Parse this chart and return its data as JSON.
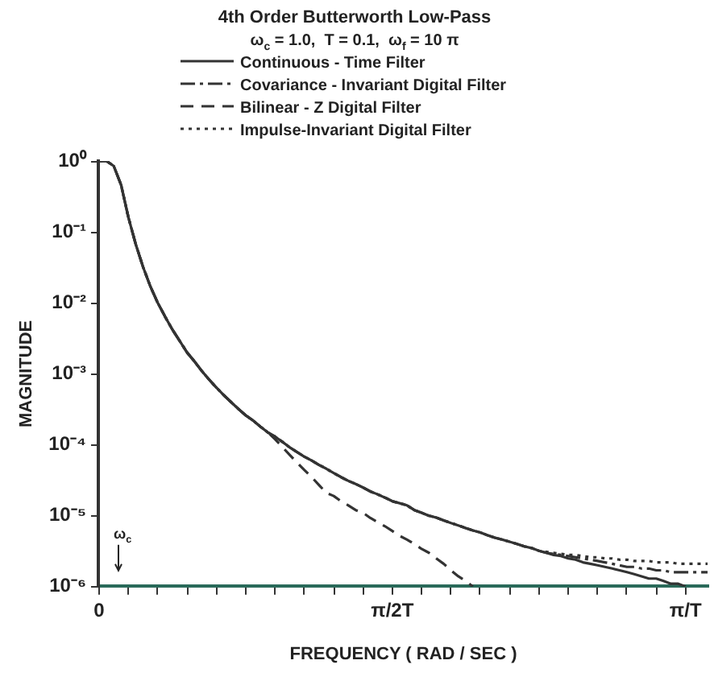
{
  "chart_data": {
    "type": "line",
    "title": "4th Order Butterworth Low-Pass",
    "subtitle": "ω$_{c}$ = 1.0,  T = 0.1,  ω$_{f}$ = 10 π",
    "xlabel": "FREQUENCY ( RAD / SEC )",
    "ylabel": "MAGNITUDE",
    "log": "y",
    "grid": false,
    "legend": "top",
    "marker": "none",
    "categories": [
      "0",
      null,
      null,
      null,
      null,
      null,
      null,
      null,
      null,
      null,
      null,
      null,
      null,
      null,
      null,
      null,
      null,
      null,
      null,
      null,
      null,
      null,
      null,
      null,
      null,
      null,
      null,
      null,
      null,
      null,
      null,
      null,
      null,
      null,
      null,
      null,
      null,
      null,
      null,
      null,
      "π/2T",
      null,
      null,
      null,
      null,
      null,
      null,
      null,
      null,
      null,
      null,
      null,
      null,
      null,
      null,
      null,
      null,
      null,
      null,
      null,
      null,
      null,
      null,
      null,
      null,
      null,
      null,
      null,
      null,
      null,
      null,
      null,
      null,
      null,
      null,
      null,
      null,
      null,
      null,
      null,
      "π/T",
      null,
      null,
      null
    ],
    "ylim": [
      1e-06,
      1
    ],
    "yticks": [
      {
        "value": 1,
        "label": "10⁰"
      },
      {
        "value": 0.1,
        "label": "10⁻¹"
      },
      {
        "value": 0.01,
        "label": "10⁻²"
      },
      {
        "value": 0.001,
        "label": "10⁻³"
      },
      {
        "value": 0.0001,
        "label": "10⁻⁴"
      },
      {
        "value": 1e-05,
        "label": "10⁻⁵"
      },
      {
        "value": 1e-06,
        "label": "10⁻⁶"
      }
    ],
    "annotations": [
      "ω$_{c}$"
    ],
    "series": [
      {
        "name": "Continuous - Time Filter",
        "color": "#333333",
        "line_style": "solid",
        "values": [
          1,
          1,
          0.85,
          0.46,
          0.16,
          0.067,
          0.032,
          0.017,
          0.01,
          0.0064,
          0.0042,
          0.0029,
          0.002,
          0.0015,
          0.0011,
          0.00083,
          0.00064,
          0.0005,
          0.0004,
          0.00032,
          0.00026,
          0.00022,
          0.00018,
          0.00015,
          0.00013,
          0.00011,
          9.2e-05,
          7.9e-05,
          6.8e-05,
          6e-05,
          5.2e-05,
          4.6e-05,
          4e-05,
          3.5e-05,
          3.1e-05,
          2.8e-05,
          2.5e-05,
          2.2e-05,
          2e-05,
          1.8e-05,
          1.6e-05,
          1.5e-05,
          1.4e-05,
          1.2e-05,
          1.1e-05,
          1e-05,
          9.4e-06,
          8.6e-06,
          7.9e-06,
          7.3e-06,
          6.7e-06,
          6.2e-06,
          5.8e-06,
          5.3e-06,
          4.9e-06,
          4.6e-06,
          4.3e-06,
          4e-06,
          3.7e-06,
          3.5e-06,
          3.2e-06,
          3e-06,
          2.8e-06,
          2.7e-06,
          2.5e-06,
          2.4e-06,
          2.2e-06,
          2.1e-06,
          2e-06,
          1.9e-06,
          1.8e-06,
          1.7e-06,
          1.6e-06,
          1.5e-06,
          1.4e-06,
          1.3e-06,
          1.3e-06,
          1.2e-06,
          1.1e-06,
          1.1e-06,
          1e-06,
          null,
          null,
          null
        ]
      },
      {
        "name": "Covariance - Invariant Digital Filter",
        "color": "#333333",
        "line_style": "dashdot",
        "values": [
          1,
          1,
          0.85,
          0.46,
          0.16,
          0.067,
          0.032,
          0.017,
          0.01,
          0.0064,
          0.0042,
          0.0029,
          0.002,
          0.0015,
          0.0011,
          0.00083,
          0.00064,
          0.0005,
          0.0004,
          0.00032,
          0.00026,
          0.00022,
          0.00018,
          0.00015,
          0.00013,
          0.00011,
          9.2e-05,
          7.9e-05,
          6.8e-05,
          6e-05,
          5.2e-05,
          4.6e-05,
          4e-05,
          3.5e-05,
          3.1e-05,
          2.8e-05,
          2.5e-05,
          2.2e-05,
          2e-05,
          1.8e-05,
          1.6e-05,
          1.5e-05,
          1.4e-05,
          1.2e-05,
          1.1e-05,
          1e-05,
          9.4e-06,
          8.6e-06,
          7.9e-06,
          7.3e-06,
          6.7e-06,
          6.2e-06,
          5.8e-06,
          5.3e-06,
          4.9e-06,
          4.6e-06,
          4.3e-06,
          4e-06,
          3.7e-06,
          3.5e-06,
          3.2e-06,
          3e-06,
          2.9e-06,
          2.8e-06,
          2.7e-06,
          2.6e-06,
          2.5e-06,
          2.4e-06,
          2.3e-06,
          2.2e-06,
          2.1e-06,
          2e-06,
          1.9e-06,
          1.9e-06,
          1.8e-06,
          1.8e-06,
          1.7e-06,
          1.7e-06,
          1.6e-06,
          1.6e-06,
          1.6e-06,
          1.6e-06,
          1.6e-06,
          1.6e-06
        ]
      },
      {
        "name": "Bilinear - Z Digital Filter",
        "color": "#333333",
        "line_style": "dashed",
        "values": [
          1,
          1,
          0.85,
          0.46,
          0.16,
          0.067,
          0.032,
          0.017,
          0.01,
          0.0064,
          0.0042,
          0.0029,
          0.002,
          0.0015,
          0.0011,
          0.00083,
          0.00064,
          0.0005,
          0.0004,
          0.00032,
          0.00026,
          0.00022,
          0.00018,
          0.00015,
          0.00012,
          9.3e-05,
          7.2e-05,
          5.6e-05,
          4.4e-05,
          3.5e-05,
          2.7e-05,
          2.1e-05,
          1.9e-05,
          1.6e-05,
          1.4e-05,
          1.2e-05,
          1.1e-05,
          9.3e-06,
          8.1e-06,
          7.1e-06,
          6.1e-06,
          5.2e-06,
          4.6e-06,
          4e-06,
          3.4e-06,
          3e-06,
          2.5e-06,
          2.1e-06,
          1.7e-06,
          1.4e-06,
          1.2e-06,
          1e-06,
          null,
          null,
          null,
          null,
          null,
          null,
          null,
          null,
          null,
          null,
          null,
          null,
          null,
          null,
          null,
          null,
          null,
          null,
          null,
          null,
          null,
          null,
          null,
          null,
          null,
          null,
          null,
          null,
          null,
          null,
          null,
          null
        ]
      },
      {
        "name": "Impulse-Invariant Digital Filter",
        "color": "#333333",
        "line_style": "dotted",
        "values": [
          1,
          1,
          0.85,
          0.46,
          0.16,
          0.067,
          0.032,
          0.017,
          0.01,
          0.0064,
          0.0042,
          0.0029,
          0.002,
          0.0015,
          0.0011,
          0.00083,
          0.00064,
          0.0005,
          0.0004,
          0.00032,
          0.00026,
          0.00022,
          0.00018,
          0.00015,
          0.00013,
          0.00011,
          9.2e-05,
          7.9e-05,
          6.8e-05,
          6e-05,
          5.2e-05,
          4.6e-05,
          4e-05,
          3.5e-05,
          3.1e-05,
          2.8e-05,
          2.5e-05,
          2.2e-05,
          2e-05,
          1.8e-05,
          1.6e-05,
          1.5e-05,
          1.4e-05,
          1.2e-05,
          1.1e-05,
          1e-05,
          9.4e-06,
          8.6e-06,
          7.9e-06,
          7.3e-06,
          6.7e-06,
          6.2e-06,
          5.8e-06,
          5.3e-06,
          4.9e-06,
          4.6e-06,
          4.3e-06,
          4e-06,
          3.7e-06,
          3.5e-06,
          3.2e-06,
          3.1e-06,
          3e-06,
          2.9e-06,
          2.8e-06,
          2.8e-06,
          2.7e-06,
          2.6e-06,
          2.6e-06,
          2.5e-06,
          2.5e-06,
          2.4e-06,
          2.4e-06,
          2.3e-06,
          2.3e-06,
          2.3e-06,
          2.2e-06,
          2.2e-06,
          2.2e-06,
          2.1e-06,
          2.1e-06,
          2.1e-06,
          2.1e-06,
          2.1e-06
        ]
      }
    ]
  }
}
